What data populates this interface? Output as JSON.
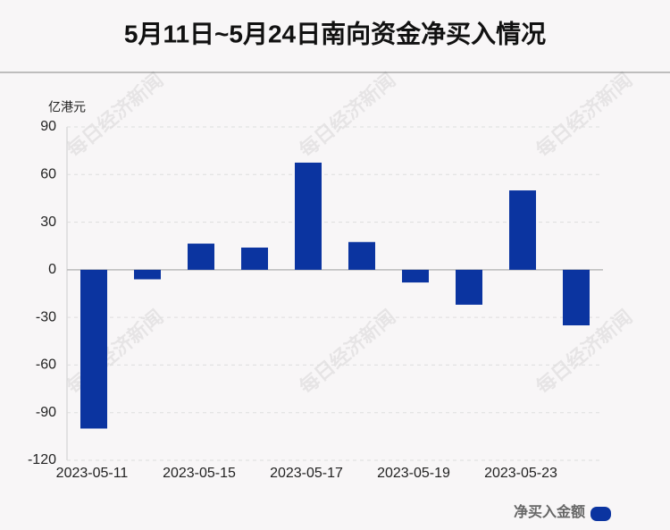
{
  "chart_data": {
    "type": "bar",
    "title": "5月11日~5月24日南向资金净买入情况",
    "y_axis_label": "亿港元",
    "watermark": "每日经济新闻",
    "categories": [
      "2023-05-11",
      null,
      "2023-05-15",
      null,
      "2023-05-17",
      null,
      "2023-05-19",
      null,
      "2023-05-23",
      null
    ],
    "series": [
      {
        "name": "净买入金额",
        "color": "#0b34a0",
        "values": [
          -100,
          -6,
          16.5,
          14,
          67.5,
          17.5,
          -8,
          -22,
          50,
          -35
        ]
      }
    ],
    "ylim": [
      -120,
      90
    ],
    "yticks": [
      -120,
      -90,
      -60,
      -30,
      0,
      30,
      60,
      90
    ],
    "grid": true,
    "legend": "bottom-right"
  }
}
